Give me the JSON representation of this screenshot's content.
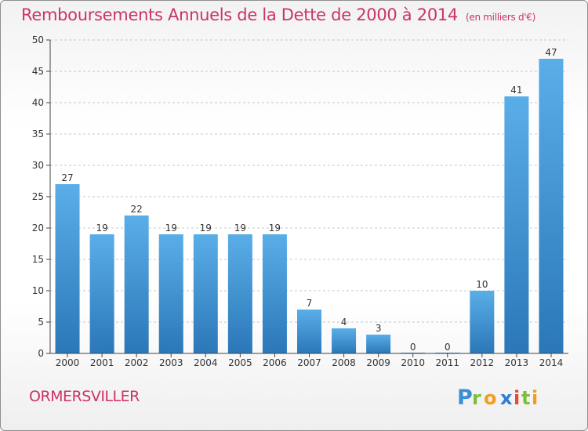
{
  "header": {
    "title": "Remboursements Annuels de la Dette de 2000 à 2014",
    "unit": "(en milliers d'€)"
  },
  "footer": {
    "commune": "ORMERSVILLER",
    "logo_text": "Proxiti"
  },
  "colors": {
    "title": "#cc3366",
    "bar_top": "#5aaee8",
    "bar_bottom": "#2b77b8",
    "grid": "#c8c8c8"
  },
  "chart_data": {
    "type": "bar",
    "categories": [
      "2000",
      "2001",
      "2002",
      "2003",
      "2004",
      "2005",
      "2006",
      "2007",
      "2008",
      "2009",
      "2010",
      "2011",
      "2012",
      "2013",
      "2014"
    ],
    "values": [
      27,
      19,
      22,
      19,
      19,
      19,
      19,
      7,
      4,
      3,
      0,
      0,
      10,
      41,
      47
    ],
    "data_labels": [
      "27",
      "19",
      "22",
      "19",
      "19",
      "19",
      "19",
      "7",
      "4",
      "3",
      "0",
      "0",
      "10",
      "41",
      "47"
    ],
    "yticks": [
      0,
      5,
      10,
      15,
      20,
      25,
      30,
      35,
      40,
      45,
      50
    ],
    "ylim": [
      0,
      50
    ],
    "grid": true
  }
}
